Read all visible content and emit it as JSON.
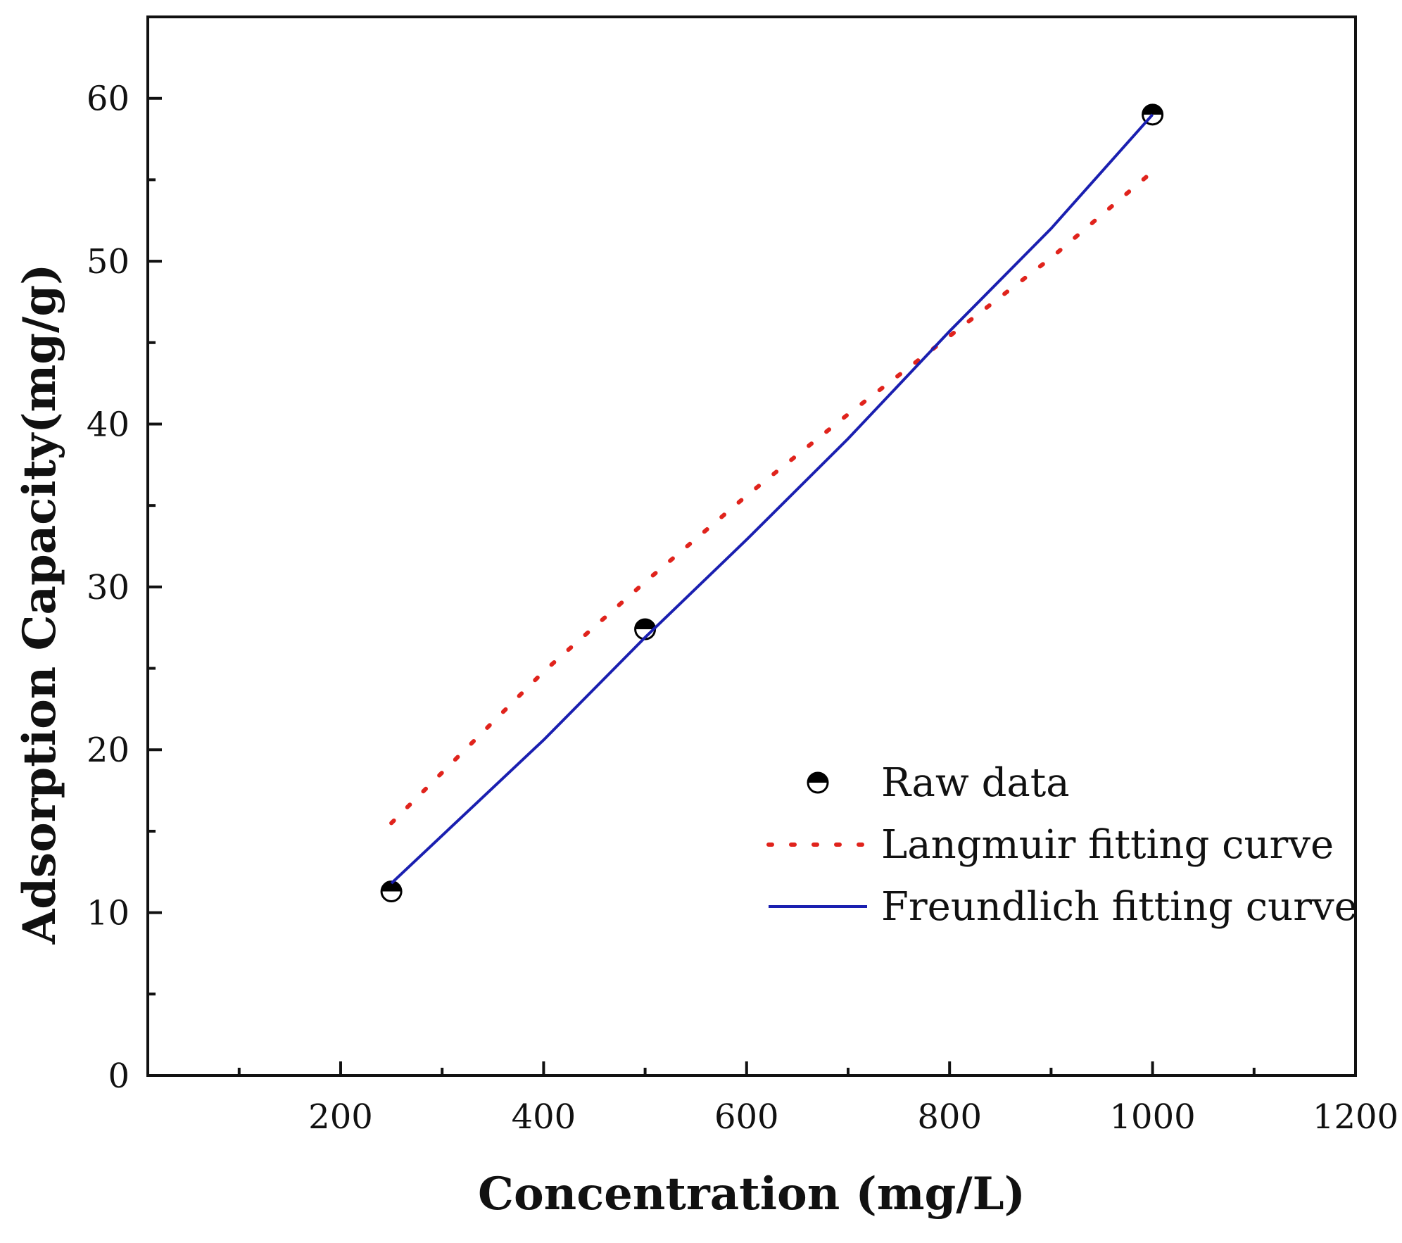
{
  "chart_data": {
    "type": "scatter",
    "title": "",
    "xlabel": "Concentration (mg/L)",
    "ylabel": "Adsorption Capacity(mg/g)",
    "xlim": [
      10,
      1200
    ],
    "ylim": [
      0,
      65
    ],
    "x_ticks": [
      200,
      400,
      600,
      800,
      1000,
      1200
    ],
    "x_tick_labels": [
      "200",
      "400",
      "600",
      "800",
      "1000",
      "1200"
    ],
    "x_minor_ticks": [
      100,
      300,
      500,
      700,
      900,
      1100
    ],
    "y_ticks": [
      0,
      10,
      20,
      30,
      40,
      50,
      60
    ],
    "y_tick_labels": [
      "0",
      "10",
      "20",
      "30",
      "40",
      "50",
      "60"
    ],
    "y_minor_ticks": [
      5,
      15,
      25,
      35,
      45,
      55
    ],
    "grid": false,
    "legend_position": "lower-right",
    "series": [
      {
        "name": "Raw data",
        "kind": "marker",
        "marker": "half-filled-circle",
        "color": "#000000",
        "x": [
          250,
          500,
          1000
        ],
        "y": [
          11.3,
          27.4,
          59.0
        ]
      },
      {
        "name": "Langmuir fitting curve",
        "kind": "dotted-line",
        "color": "#e0231c",
        "x": [
          250,
          400,
          500,
          600,
          700,
          800,
          900,
          1000
        ],
        "y": [
          15.5,
          24.8,
          30.3,
          35.6,
          40.6,
          45.4,
          50.2,
          55.5
        ]
      },
      {
        "name": "Freundlich fitting curve",
        "kind": "solid-line",
        "color": "#1a1fb0",
        "x": [
          250,
          400,
          500,
          600,
          700,
          800,
          900,
          1000
        ],
        "y": [
          11.8,
          20.6,
          26.9,
          32.9,
          39.1,
          45.7,
          52.0,
          59.0
        ]
      }
    ]
  }
}
